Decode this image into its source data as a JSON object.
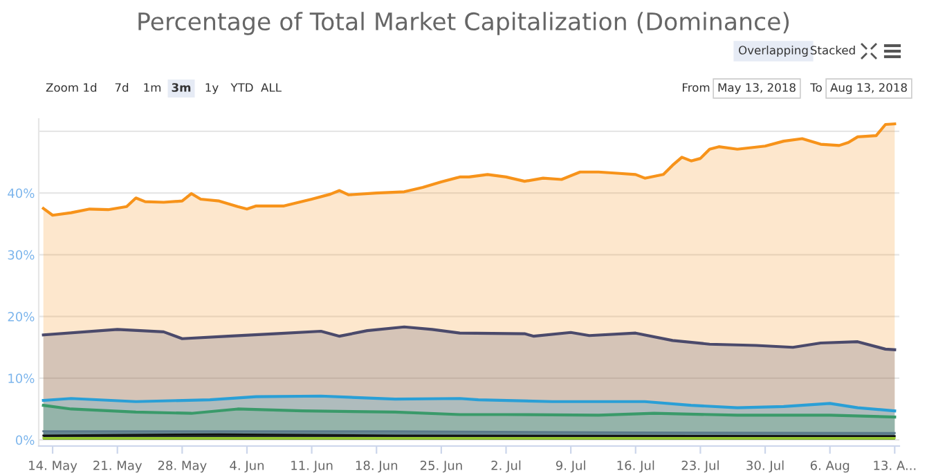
{
  "chart_data": {
    "type": "area",
    "title": "Percentage of Total Market Capitalization (Dominance)",
    "annotations": [
      "Zoom",
      "1d",
      "7d",
      "1m",
      "3m",
      "1y",
      "YTD",
      "ALL",
      "Overlapping",
      "Stacked",
      "From",
      "May 13, 2018",
      "To",
      "Aug 13, 2018"
    ],
    "xlim": [
      "2018-05-12T12:00",
      "2018-08-13T12:00"
    ],
    "xticks": [
      {
        "value": "2018-05-14",
        "label": "14. May"
      },
      {
        "value": "2018-05-21",
        "label": "21. May"
      },
      {
        "value": "2018-05-28",
        "label": "28. May"
      },
      {
        "value": "2018-06-04",
        "label": "4. Jun"
      },
      {
        "value": "2018-06-11",
        "label": "11. Jun"
      },
      {
        "value": "2018-06-18",
        "label": "18. Jun"
      },
      {
        "value": "2018-06-25",
        "label": "25. Jun"
      },
      {
        "value": "2018-07-02",
        "label": "2. Jul"
      },
      {
        "value": "2018-07-09",
        "label": "9. Jul"
      },
      {
        "value": "2018-07-16",
        "label": "16. Jul"
      },
      {
        "value": "2018-07-23",
        "label": "23. Jul"
      },
      {
        "value": "2018-07-30",
        "label": "30. Jul"
      },
      {
        "value": "2018-08-06",
        "label": "6. Aug"
      },
      {
        "value": "2018-08-13",
        "label": "13. A..."
      }
    ],
    "ylim": [
      -1,
      52
    ],
    "yticks": [
      {
        "value": 0,
        "label": "0%"
      },
      {
        "value": 10,
        "label": "10%"
      },
      {
        "value": 20,
        "label": "20%"
      },
      {
        "value": 30,
        "label": "30%"
      },
      {
        "value": 40,
        "label": "40%"
      },
      {
        "value": 50,
        "label": null
      }
    ],
    "grid": "y",
    "series": [
      {
        "color": "#f7931a",
        "x": [
          "2018-05-13",
          "2018-05-14",
          "2018-05-16",
          "2018-05-18",
          "2018-05-20",
          "2018-05-22",
          "2018-05-23",
          "2018-05-24",
          "2018-05-26",
          "2018-05-28",
          "2018-05-29",
          "2018-05-30",
          "2018-06-01",
          "2018-06-03",
          "2018-06-04",
          "2018-06-05",
          "2018-06-08",
          "2018-06-11",
          "2018-06-13",
          "2018-06-14",
          "2018-06-15",
          "2018-06-18",
          "2018-06-21",
          "2018-06-23",
          "2018-06-25",
          "2018-06-27",
          "2018-06-28",
          "2018-06-30",
          "2018-07-02",
          "2018-07-04",
          "2018-07-06",
          "2018-07-08",
          "2018-07-10",
          "2018-07-12",
          "2018-07-14",
          "2018-07-16",
          "2018-07-17",
          "2018-07-19",
          "2018-07-20",
          "2018-07-21",
          "2018-07-22",
          "2018-07-23",
          "2018-07-24",
          "2018-07-25",
          "2018-07-27",
          "2018-07-30",
          "2018-08-01",
          "2018-08-03",
          "2018-08-05",
          "2018-08-07",
          "2018-08-08",
          "2018-08-09",
          "2018-08-11",
          "2018-08-12",
          "2018-08-13"
        ],
        "values": [
          37.5,
          36.4,
          36.8,
          37.4,
          37.3,
          37.8,
          39.2,
          38.6,
          38.5,
          38.7,
          39.9,
          39.0,
          38.7,
          37.8,
          37.4,
          37.9,
          37.9,
          39.0,
          39.8,
          40.4,
          39.7,
          40.0,
          40.2,
          40.9,
          41.8,
          42.6,
          42.6,
          43.0,
          42.6,
          41.9,
          42.4,
          42.2,
          43.4,
          43.4,
          43.2,
          43.0,
          42.4,
          43.0,
          44.5,
          45.8,
          45.2,
          45.6,
          47.1,
          47.5,
          47.1,
          47.6,
          48.4,
          48.8,
          47.9,
          47.7,
          48.2,
          49.1,
          49.3,
          51.1,
          51.2
        ]
      },
      {
        "color": "#4b4a6b",
        "x": [
          "2018-05-13",
          "2018-05-21",
          "2018-05-26",
          "2018-05-28",
          "2018-06-02",
          "2018-06-07",
          "2018-06-12",
          "2018-06-14",
          "2018-06-17",
          "2018-06-21",
          "2018-06-24",
          "2018-06-27",
          "2018-07-04",
          "2018-07-05",
          "2018-07-09",
          "2018-07-11",
          "2018-07-16",
          "2018-07-20",
          "2018-07-24",
          "2018-07-29",
          "2018-08-02",
          "2018-08-05",
          "2018-08-09",
          "2018-08-12",
          "2018-08-13"
        ],
        "values": [
          17.0,
          17.9,
          17.5,
          16.4,
          16.8,
          17.2,
          17.6,
          16.8,
          17.7,
          18.3,
          17.9,
          17.3,
          17.2,
          16.8,
          17.4,
          16.9,
          17.3,
          16.1,
          15.5,
          15.3,
          15.0,
          15.7,
          15.9,
          14.7,
          14.6
        ]
      },
      {
        "color": "#2a9fd6",
        "x": [
          "2018-05-13",
          "2018-05-16",
          "2018-05-23",
          "2018-05-31",
          "2018-06-05",
          "2018-06-12",
          "2018-06-20",
          "2018-06-27",
          "2018-06-29",
          "2018-07-07",
          "2018-07-17",
          "2018-07-22",
          "2018-07-27",
          "2018-08-01",
          "2018-08-06",
          "2018-08-09",
          "2018-08-13"
        ],
        "values": [
          6.4,
          6.7,
          6.2,
          6.5,
          7.0,
          7.1,
          6.6,
          6.7,
          6.5,
          6.2,
          6.2,
          5.6,
          5.2,
          5.4,
          5.9,
          5.2,
          4.7
        ]
      },
      {
        "color": "#3a9a6a",
        "x": [
          "2018-05-13",
          "2018-05-16",
          "2018-05-23",
          "2018-05-29",
          "2018-06-03",
          "2018-06-10",
          "2018-06-20",
          "2018-06-27",
          "2018-07-02",
          "2018-07-12",
          "2018-07-18",
          "2018-07-27",
          "2018-08-06",
          "2018-08-13"
        ],
        "values": [
          5.6,
          5.0,
          4.5,
          4.3,
          5.0,
          4.7,
          4.5,
          4.1,
          4.1,
          4.0,
          4.3,
          4.0,
          4.0,
          3.7
        ]
      },
      {
        "color": "#5a7a8a",
        "x": [
          "2018-05-13",
          "2018-06-20",
          "2018-07-16",
          "2018-08-13"
        ],
        "values": [
          1.4,
          1.4,
          1.2,
          1.1
        ]
      },
      {
        "color": "#111111",
        "x": [
          "2018-05-13",
          "2018-06-01",
          "2018-06-20",
          "2018-08-13"
        ],
        "values": [
          0.7,
          0.9,
          0.7,
          0.6
        ]
      },
      {
        "color": "#9acd32",
        "x": [
          "2018-05-13",
          "2018-08-13"
        ],
        "values": [
          0.3,
          0.3
        ]
      }
    ]
  }
}
